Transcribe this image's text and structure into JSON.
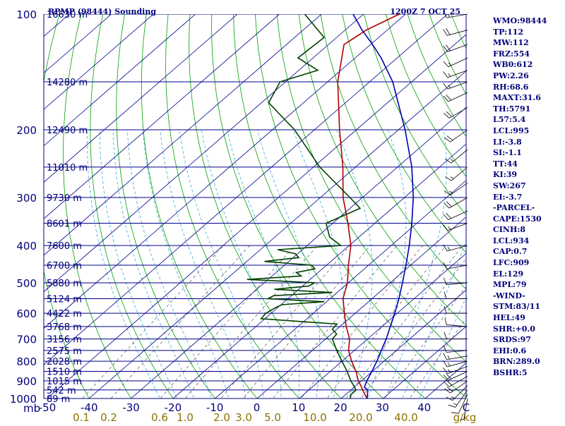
{
  "header": {
    "station": "RPMP (98444) Sounding",
    "time": "1200Z  7 OCT 25"
  },
  "stats": [
    "WMO:98444",
    "TP:112",
    "MW:112",
    "FRZ:554",
    "WB0:612",
    "PW:2.26",
    "RH:68.6",
    "MAXT:31.6",
    "TH:5791",
    "L57:5.4",
    "LCL:995",
    "LI:-3.8",
    "SI:-1.1",
    "TT:44",
    "KI:39",
    "SW:267",
    "EI:-3.7",
    "-PARCEL-",
    "CAPE:1530",
    "CINH:8",
    "LCL:934",
    "CAP:0.7",
    "LFC:909",
    "EL:129",
    "MPL:79",
    "-WIND-",
    "STM:83/11",
    "HEL:49",
    "SHR:+0.0",
    "SRDS:97",
    "EHI:0.6",
    "BRN:289.0",
    "BSHR:5"
  ],
  "chart_data": {
    "type": "line",
    "chart_kind": "skew-T log-P sounding",
    "xlabel": "",
    "ylabel": "mb",
    "y_log_scale": true,
    "ylim": [
      1000,
      100
    ],
    "xlim": [
      -50,
      50
    ],
    "pressure_ticks": [
      100,
      200,
      300,
      400,
      500,
      600,
      700,
      800,
      900,
      1000
    ],
    "temperature_ticks": [
      "-50",
      "-40",
      "-30",
      "-20",
      "-10",
      "0",
      "10",
      "20",
      "30",
      "40",
      "C"
    ],
    "mixing_ratio_ticks": [
      "0.1",
      "0.2",
      "0.6",
      "1.0",
      "2.0",
      "3.0",
      "5.0",
      "10.0",
      "20.0",
      "40.0",
      "g/kg"
    ],
    "height_levels": [
      {
        "p": 100,
        "label": "16630 m"
      },
      {
        "p": 150,
        "label": "14280 m"
      },
      {
        "p": 200,
        "label": "12490 m"
      },
      {
        "p": 250,
        "label": "11010 m"
      },
      {
        "p": 300,
        "label": "9730 m"
      },
      {
        "p": 350,
        "label": "8601 m"
      },
      {
        "p": 400,
        "label": "7600 m"
      },
      {
        "p": 450,
        "label": "6700 m"
      },
      {
        "p": 500,
        "label": "5880 m"
      },
      {
        "p": 550,
        "label": "5124 m"
      },
      {
        "p": 600,
        "label": "4422 m"
      },
      {
        "p": 650,
        "label": "3768 m"
      },
      {
        "p": 700,
        "label": "3156 m"
      },
      {
        "p": 750,
        "label": "2575 m"
      },
      {
        "p": 800,
        "label": "2028 m"
      },
      {
        "p": 850,
        "label": "1510 m"
      },
      {
        "p": 900,
        "label": "1015 m"
      },
      {
        "p": 950,
        "label": "542 m"
      },
      {
        "p": 1000,
        "label": "89 m"
      }
    ],
    "series": [
      {
        "role": "temperature",
        "color": "#b00000",
        "points": [
          [
            1000,
            26.2
          ],
          [
            970,
            24.1
          ],
          [
            950,
            22.8
          ],
          [
            925,
            21.1
          ],
          [
            900,
            19.3
          ],
          [
            850,
            16.1
          ],
          [
            800,
            12.3
          ],
          [
            750,
            8.6
          ],
          [
            700,
            5.7
          ],
          [
            650,
            1.5
          ],
          [
            600,
            -2.6
          ],
          [
            550,
            -6.9
          ],
          [
            500,
            -10.2
          ],
          [
            450,
            -14.8
          ],
          [
            400,
            -19.6
          ],
          [
            350,
            -26.4
          ],
          [
            300,
            -34.6
          ],
          [
            250,
            -43.0
          ],
          [
            200,
            -54.0
          ],
          [
            150,
            -67.6
          ],
          [
            120,
            -76.3
          ],
          [
            110,
            -75.0
          ],
          [
            100,
            -71.5
          ]
        ]
      },
      {
        "role": "dewpoint",
        "color": "#004000",
        "points": [
          [
            1000,
            22.2
          ],
          [
            980,
            21.3
          ],
          [
            950,
            21.2
          ],
          [
            925,
            19.4
          ],
          [
            900,
            17.5
          ],
          [
            850,
            14.0
          ],
          [
            800,
            10.0
          ],
          [
            750,
            5.8
          ],
          [
            700,
            1.6
          ],
          [
            680,
            1.3
          ],
          [
            660,
            -1.1
          ],
          [
            640,
            -1.4
          ],
          [
            620,
            -20.9
          ],
          [
            600,
            -21.3
          ],
          [
            580,
            -20.5
          ],
          [
            570,
            -19.8
          ],
          [
            560,
            -10.6
          ],
          [
            550,
            -24.8
          ],
          [
            540,
            -24.2
          ],
          [
            530,
            -11.2
          ],
          [
            520,
            -25.8
          ],
          [
            510,
            -18.5
          ],
          [
            500,
            -18.0
          ],
          [
            490,
            -35.0
          ],
          [
            480,
            -23.1
          ],
          [
            470,
            -25.2
          ],
          [
            460,
            -21.8
          ],
          [
            450,
            -23.5
          ],
          [
            440,
            -35.8
          ],
          [
            430,
            -28.7
          ],
          [
            420,
            -30.6
          ],
          [
            410,
            -35.9
          ],
          [
            400,
            -22.0
          ],
          [
            380,
            -27.0
          ],
          [
            350,
            -31.6
          ],
          [
            320,
            -27.6
          ],
          [
            300,
            -33.0
          ],
          [
            250,
            -48.5
          ],
          [
            200,
            -64.7
          ],
          [
            170,
            -78.3
          ],
          [
            150,
            -81.3
          ],
          [
            140,
            -75.5
          ],
          [
            130,
            -83.6
          ],
          [
            115,
            -83.0
          ],
          [
            100,
            -94.0
          ]
        ]
      },
      {
        "role": "parcel",
        "color": "#0000b0",
        "points": [
          [
            1000,
            26.2
          ],
          [
            950,
            24.0
          ],
          [
            934,
            22.4
          ],
          [
            900,
            21.3
          ],
          [
            850,
            19.9
          ],
          [
            800,
            18.3
          ],
          [
            750,
            16.4
          ],
          [
            700,
            14.4
          ],
          [
            650,
            12.0
          ],
          [
            600,
            9.4
          ],
          [
            550,
            6.4
          ],
          [
            500,
            2.9
          ],
          [
            450,
            -1.1
          ],
          [
            400,
            -5.7
          ],
          [
            350,
            -11.2
          ],
          [
            300,
            -17.9
          ],
          [
            250,
            -26.6
          ],
          [
            200,
            -38.4
          ],
          [
            150,
            -54.5
          ],
          [
            130,
            -63.8
          ],
          [
            120,
            -69.5
          ],
          [
            110,
            -76.0
          ],
          [
            100,
            -82.5
          ]
        ]
      }
    ],
    "winds": [
      {
        "p": 1000,
        "dir": 190,
        "spd": 5
      },
      {
        "p": 975,
        "dir": 205,
        "spd": 10
      },
      {
        "p": 950,
        "dir": 215,
        "spd": 15
      },
      {
        "p": 925,
        "dir": 225,
        "spd": 15
      },
      {
        "p": 900,
        "dir": 235,
        "spd": 20
      },
      {
        "p": 875,
        "dir": 240,
        "spd": 20
      },
      {
        "p": 850,
        "dir": 245,
        "spd": 20
      },
      {
        "p": 825,
        "dir": 250,
        "spd": 15
      },
      {
        "p": 800,
        "dir": 255,
        "spd": 15
      },
      {
        "p": 775,
        "dir": 260,
        "spd": 15
      },
      {
        "p": 750,
        "dir": 265,
        "spd": 10
      },
      {
        "p": 700,
        "dir": 270,
        "spd": 10
      },
      {
        "p": 650,
        "dir": 275,
        "spd": 10
      },
      {
        "p": 600,
        "dir": 270,
        "spd": 10
      },
      {
        "p": 550,
        "dir": 270,
        "spd": 10
      },
      {
        "p": 500,
        "dir": 265,
        "spd": 10
      },
      {
        "p": 450,
        "dir": 260,
        "spd": 10
      },
      {
        "p": 400,
        "dir": 255,
        "spd": 15
      },
      {
        "p": 350,
        "dir": 250,
        "spd": 15
      },
      {
        "p": 325,
        "dir": 245,
        "spd": 20
      },
      {
        "p": 300,
        "dir": 240,
        "spd": 20
      },
      {
        "p": 275,
        "dir": 235,
        "spd": 15
      },
      {
        "p": 250,
        "dir": 230,
        "spd": 15
      },
      {
        "p": 225,
        "dir": 230,
        "spd": 15
      },
      {
        "p": 200,
        "dir": 235,
        "spd": 20
      },
      {
        "p": 175,
        "dir": 240,
        "spd": 20
      },
      {
        "p": 160,
        "dir": 245,
        "spd": 20
      },
      {
        "p": 150,
        "dir": 250,
        "spd": 15
      },
      {
        "p": 140,
        "dir": 250,
        "spd": 15
      },
      {
        "p": 130,
        "dir": 245,
        "spd": 15
      },
      {
        "p": 120,
        "dir": 250,
        "spd": 20
      },
      {
        "p": 110,
        "dir": 255,
        "spd": 20
      },
      {
        "p": 100,
        "dir": 260,
        "spd": 15
      }
    ],
    "colors": {
      "isobar": "#00008b",
      "isotherm": "#00008b",
      "dry_adiabat": "#00a000",
      "moist_adiabat": "#3fa8d8",
      "mixing_ratio": "#555555",
      "axis_text": "#00007a",
      "mixing_text": "#8b7300"
    }
  }
}
